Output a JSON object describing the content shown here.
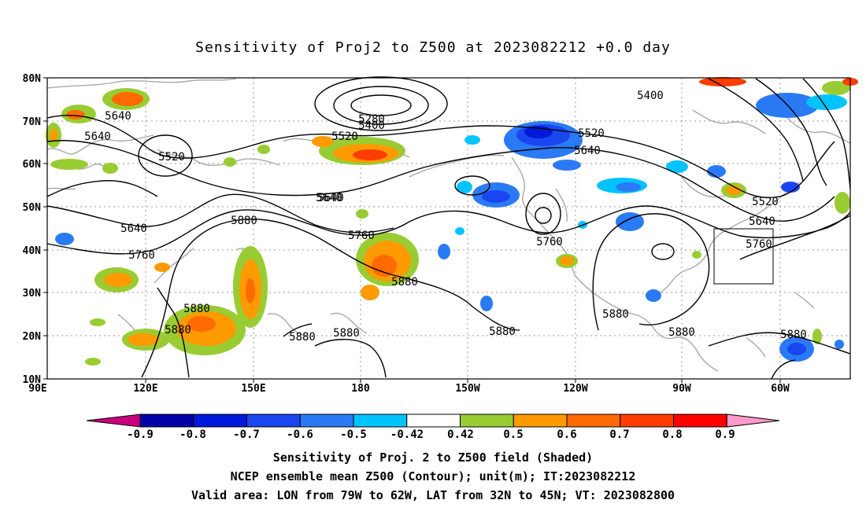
{
  "title": "Sensitivity of Proj2 to Z500 at 2023082212 +0.0 day",
  "lat_labels": [
    "80N",
    "70N",
    "60N",
    "50N",
    "40N",
    "30N",
    "20N",
    "10N"
  ],
  "lon_labels": [
    "90E",
    "120E",
    "150E",
    "180",
    "150W",
    "120W",
    "90W",
    "60W"
  ],
  "contour_labels": [
    "5640",
    "5640",
    "5520",
    "5640",
    "5640",
    "5760",
    "5880",
    "5880",
    "5880",
    "5520",
    "5280",
    "5400",
    "5640",
    "5760",
    "5880",
    "5880",
    "5880",
    "5520",
    "5640",
    "5760",
    "5880",
    "5400",
    "5880",
    "5880",
    "5520",
    "5640",
    "5760",
    "5880"
  ],
  "colorbar": {
    "labels": [
      "-0.9",
      "-0.8",
      "-0.7",
      "-0.6",
      "-0.5",
      "-0.42",
      "0.42",
      "0.5",
      "0.6",
      "0.7",
      "0.8",
      "0.9"
    ],
    "colors": [
      "#c8007c",
      "#0000a6",
      "#0018d8",
      "#1a46f0",
      "#2a7af5",
      "#00c3ff",
      "#ffffff",
      "#99cc33",
      "#ff9a00",
      "#ff6b00",
      "#ff3d00",
      "#ff0000",
      "#ff99cc"
    ]
  },
  "captions": [
    "Sensitivity of Proj. 2 to Z500 field (Shaded)",
    "NCEP ensemble mean Z500 (Contour); unit(m); IT:2023082212",
    "Valid area: LON from 79W to 62W, LAT from 32N to 45N; VT: 2023082800"
  ]
}
